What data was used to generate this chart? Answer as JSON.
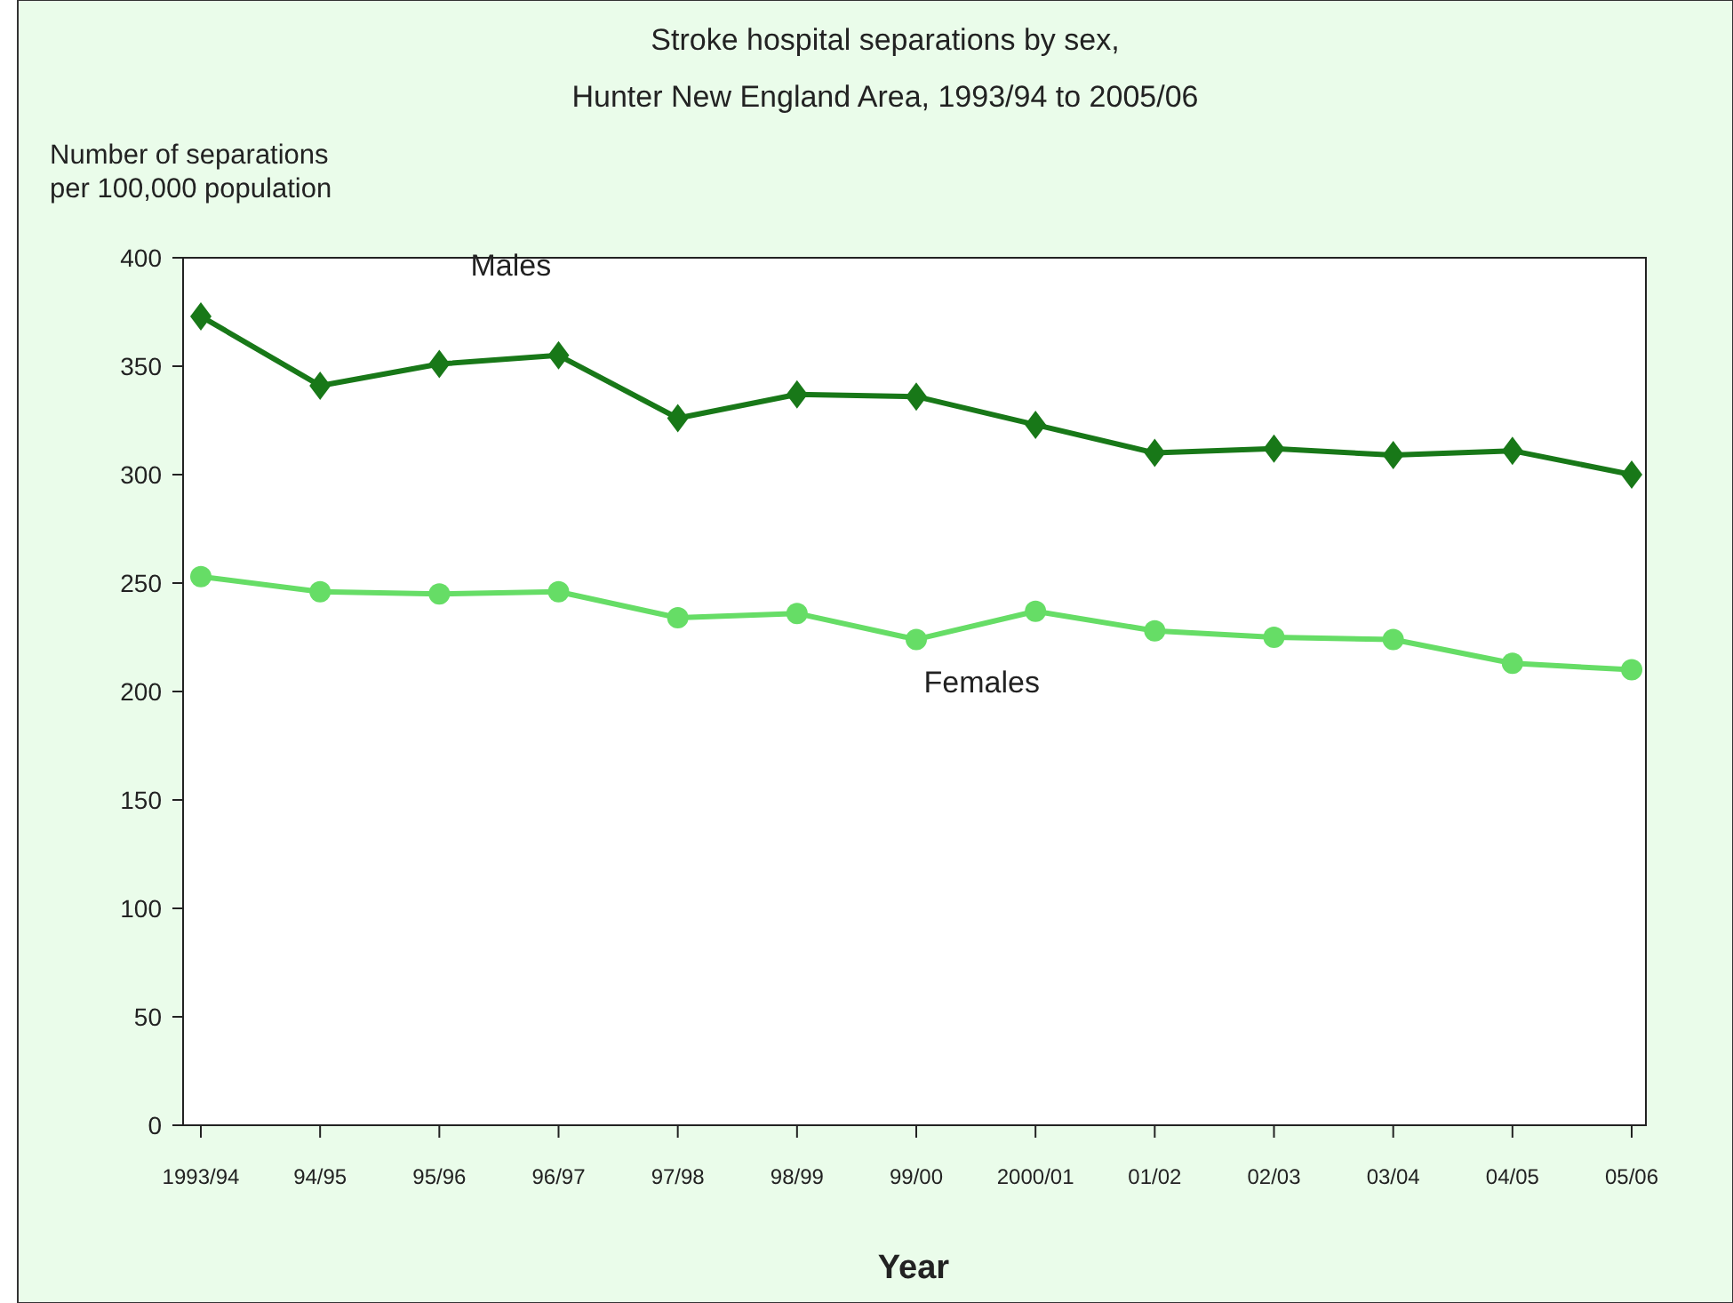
{
  "chart_data": {
    "type": "line",
    "title": "Stroke hospital separations by sex,",
    "subtitle": "Hunter New England Area, 1993/94 to 2005/06",
    "xlabel": "Year",
    "ylabel": "Number of separations\nper 100,000 population",
    "categories": [
      "1993/94",
      "94/95",
      "95/96",
      "96/97",
      "97/98",
      "98/99",
      "99/00",
      "2000/01",
      "01/02",
      "02/03",
      "03/04",
      "04/05",
      "05/06"
    ],
    "ylim": [
      0,
      400
    ],
    "yticks": [
      0,
      50,
      100,
      150,
      200,
      250,
      300,
      350,
      400
    ],
    "grid": false,
    "line_style": "solid",
    "series": [
      {
        "name": "Males",
        "color": "#187818",
        "marker": "diamond",
        "values": [
          373,
          341,
          351,
          355,
          326,
          337,
          336,
          323,
          310,
          312,
          309,
          311,
          300
        ]
      },
      {
        "name": "Females",
        "color": "#66dd66",
        "marker": "circle",
        "values": [
          253,
          246,
          245,
          246,
          234,
          236,
          224,
          237,
          228,
          225,
          224,
          213,
          210
        ]
      }
    ]
  }
}
